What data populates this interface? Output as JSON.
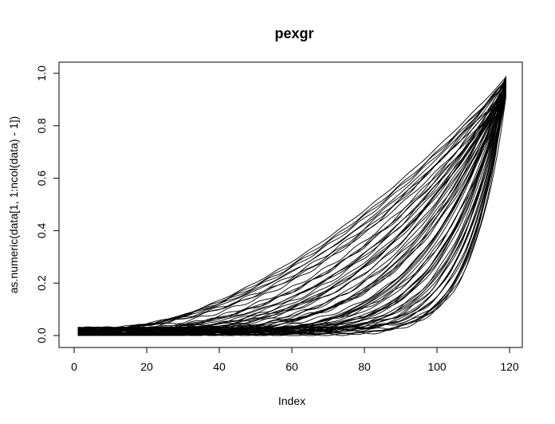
{
  "chart_data": {
    "type": "line",
    "title": "pexgr",
    "xlabel": "Index",
    "ylabel": "as.numeric(data[1, 1:ncol(data) - 1])",
    "xlim": [
      1,
      119
    ],
    "ylim": [
      0,
      1.0
    ],
    "x_ticks": [
      "0",
      "20",
      "40",
      "60",
      "80",
      "100",
      "120"
    ],
    "y_ticks": [
      "0.0",
      "0.2",
      "0.4",
      "0.6",
      "0.8",
      "1.0"
    ],
    "x_tick_values": [
      0,
      20,
      40,
      60,
      80,
      100,
      120
    ],
    "y_tick_values": [
      0,
      0.2,
      0.4,
      0.6,
      0.8,
      1.0
    ],
    "series_family": {
      "description_free": true,
      "count": 70,
      "x_start": 1,
      "x_end": 119,
      "start_y_range": [
        0.0,
        0.03
      ],
      "end_y_range": [
        0.86,
        0.99
      ],
      "curvature_exponent_range": [
        1.8,
        14
      ]
    },
    "grid": false,
    "legend": "none"
  }
}
